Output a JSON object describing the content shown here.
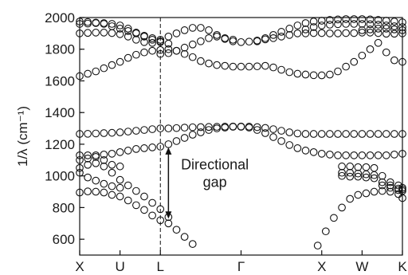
{
  "chart_data": {
    "type": "scatter",
    "title": "",
    "xlabel": "",
    "ylabel": "1/λ (cm⁻¹)",
    "ylim": [
      500,
      2000
    ],
    "y_ticks": [
      600,
      800,
      1000,
      1200,
      1400,
      1600,
      1800,
      2000
    ],
    "x_path": [
      "X",
      "U",
      "L",
      "Γ",
      "X",
      "W",
      "K"
    ],
    "x_path_positions": [
      0,
      1,
      2,
      4,
      6,
      7,
      8
    ],
    "guide_line_at": "L",
    "annotation": {
      "text_line1": "Directional",
      "text_line2": "gap",
      "arrow_x": 2.2,
      "arrow_from": 1180,
      "arrow_to": 730
    },
    "series": [
      {
        "values": [
          [
            0,
            895
          ],
          [
            0.2,
            902
          ],
          [
            0.4,
            900
          ],
          [
            0.6,
            895
          ],
          [
            0.8,
            880
          ],
          [
            1.0,
            870
          ],
          [
            1.2,
            845
          ],
          [
            1.4,
            815
          ],
          [
            1.6,
            785
          ],
          [
            1.8,
            750
          ],
          [
            2.0,
            720
          ],
          [
            2.2,
            700
          ],
          [
            2.4,
            660
          ],
          [
            2.6,
            615
          ],
          [
            2.8,
            570
          ]
        ]
      },
      {
        "values": [
          [
            5.9,
            560
          ],
          [
            6.1,
            650
          ],
          [
            6.3,
            735
          ],
          [
            6.5,
            800
          ],
          [
            6.7,
            855
          ],
          [
            6.9,
            880
          ],
          [
            7.1,
            890
          ],
          [
            7.3,
            900
          ],
          [
            7.5,
            905
          ],
          [
            7.7,
            900
          ],
          [
            7.9,
            885
          ],
          [
            8.0,
            860
          ]
        ]
      },
      {
        "values": [
          [
            0,
            1050
          ],
          [
            0.2,
            1070
          ],
          [
            0.4,
            1080
          ],
          [
            0.6,
            1060
          ],
          [
            0.8,
            1020
          ],
          [
            1.0,
            975
          ],
          [
            1.2,
            940
          ],
          [
            1.4,
            905
          ],
          [
            1.6,
            870
          ],
          [
            1.8,
            830
          ],
          [
            2.0,
            790
          ],
          [
            2.2,
            740
          ]
        ]
      },
      {
        "values": [
          [
            6.5,
            1060
          ],
          [
            6.7,
            1060
          ],
          [
            6.9,
            1055
          ],
          [
            7.1,
            1055
          ],
          [
            7.3,
            1050
          ],
          [
            7.5,
            1000
          ],
          [
            7.7,
            960
          ],
          [
            7.9,
            940
          ],
          [
            8.0,
            925
          ]
        ]
      },
      {
        "values": [
          [
            0,
            1020
          ],
          [
            0.2,
            990
          ],
          [
            0.4,
            970
          ],
          [
            0.6,
            950
          ],
          [
            0.8,
            935
          ],
          [
            1.0,
            925
          ]
        ]
      },
      {
        "values": [
          [
            6.5,
            1020
          ],
          [
            6.7,
            1020
          ],
          [
            6.9,
            1015
          ],
          [
            7.1,
            1010
          ],
          [
            7.3,
            1005
          ],
          [
            7.5,
            960
          ],
          [
            7.7,
            940
          ],
          [
            7.9,
            920
          ],
          [
            8.0,
            915
          ]
        ]
      },
      {
        "values": [
          [
            0,
            1100
          ],
          [
            0.2,
            1110
          ],
          [
            0.4,
            1120
          ],
          [
            0.6,
            1100
          ],
          [
            0.8,
            1070
          ],
          [
            1.0,
            1060
          ]
        ]
      },
      {
        "values": [
          [
            6.5,
            1000
          ],
          [
            6.7,
            995
          ],
          [
            6.9,
            995
          ],
          [
            7.1,
            990
          ],
          [
            7.3,
            985
          ],
          [
            7.5,
            940
          ],
          [
            7.7,
            925
          ],
          [
            7.9,
            910
          ],
          [
            8.0,
            905
          ]
        ]
      },
      {
        "values": [
          [
            0,
            1130
          ],
          [
            0.2,
            1130
          ],
          [
            0.4,
            1130
          ],
          [
            0.6,
            1135
          ],
          [
            0.8,
            1140
          ],
          [
            1.0,
            1150
          ],
          [
            1.2,
            1160
          ],
          [
            1.4,
            1170
          ],
          [
            1.6,
            1175
          ],
          [
            1.8,
            1180
          ],
          [
            2.0,
            1185
          ],
          [
            2.2,
            1200
          ],
          [
            2.4,
            1220
          ],
          [
            2.6,
            1240
          ],
          [
            2.8,
            1260
          ],
          [
            3.0,
            1275
          ],
          [
            3.2,
            1290
          ],
          [
            3.4,
            1300
          ],
          [
            3.6,
            1305
          ],
          [
            3.8,
            1310
          ],
          [
            4.0,
            1310
          ],
          [
            4.2,
            1305
          ],
          [
            4.4,
            1290
          ],
          [
            4.6,
            1270
          ],
          [
            4.8,
            1245
          ],
          [
            5.0,
            1220
          ],
          [
            5.2,
            1195
          ],
          [
            5.4,
            1175
          ],
          [
            5.6,
            1160
          ],
          [
            5.8,
            1150
          ],
          [
            6.0,
            1140
          ],
          [
            6.2,
            1135
          ],
          [
            6.4,
            1130
          ],
          [
            6.6,
            1130
          ],
          [
            6.8,
            1130
          ],
          [
            7.0,
            1130
          ],
          [
            7.2,
            1130
          ],
          [
            7.4,
            1130
          ],
          [
            7.6,
            1130
          ],
          [
            7.8,
            1135
          ],
          [
            8.0,
            1140
          ]
        ]
      },
      {
        "values": [
          [
            0,
            1265
          ],
          [
            0.2,
            1266
          ],
          [
            0.4,
            1268
          ],
          [
            0.6,
            1270
          ],
          [
            0.8,
            1272
          ],
          [
            1.0,
            1275
          ],
          [
            1.2,
            1280
          ],
          [
            1.4,
            1285
          ],
          [
            1.6,
            1290
          ],
          [
            1.8,
            1295
          ],
          [
            2.0,
            1300
          ],
          [
            2.2,
            1300
          ],
          [
            2.4,
            1302
          ],
          [
            2.6,
            1305
          ],
          [
            2.8,
            1307
          ],
          [
            3.0,
            1308
          ],
          [
            3.2,
            1309
          ],
          [
            3.4,
            1310
          ],
          [
            3.6,
            1311
          ],
          [
            3.8,
            1312
          ],
          [
            4.0,
            1312
          ],
          [
            4.2,
            1311
          ],
          [
            4.4,
            1308
          ],
          [
            4.6,
            1303
          ],
          [
            4.8,
            1295
          ],
          [
            5.0,
            1285
          ],
          [
            5.2,
            1275
          ],
          [
            5.4,
            1268
          ],
          [
            5.6,
            1265
          ],
          [
            5.8,
            1265
          ],
          [
            6.0,
            1265
          ],
          [
            6.2,
            1265
          ],
          [
            6.4,
            1265
          ],
          [
            6.6,
            1265
          ],
          [
            6.8,
            1265
          ],
          [
            7.0,
            1265
          ],
          [
            7.2,
            1265
          ],
          [
            7.4,
            1265
          ],
          [
            7.6,
            1265
          ],
          [
            7.8,
            1265
          ],
          [
            8.0,
            1265
          ]
        ]
      },
      {
        "values": [
          [
            0,
            1630
          ],
          [
            0.2,
            1645
          ],
          [
            0.4,
            1660
          ],
          [
            0.6,
            1680
          ],
          [
            0.8,
            1700
          ],
          [
            1.0,
            1720
          ],
          [
            1.2,
            1745
          ],
          [
            1.4,
            1765
          ],
          [
            1.6,
            1780
          ],
          [
            1.8,
            1790
          ],
          [
            2.0,
            1795
          ],
          [
            2.2,
            1800
          ],
          [
            2.4,
            1790
          ],
          [
            2.6,
            1770
          ],
          [
            2.8,
            1750
          ],
          [
            3.0,
            1725
          ],
          [
            3.2,
            1710
          ],
          [
            3.4,
            1700
          ],
          [
            3.6,
            1695
          ],
          [
            3.8,
            1690
          ],
          [
            4.0,
            1690
          ],
          [
            4.2,
            1690
          ],
          [
            4.4,
            1692
          ],
          [
            4.6,
            1695
          ],
          [
            4.8,
            1685
          ],
          [
            5.0,
            1670
          ],
          [
            5.2,
            1655
          ],
          [
            5.4,
            1645
          ],
          [
            5.6,
            1640
          ],
          [
            5.8,
            1636
          ],
          [
            6.0,
            1635
          ],
          [
            6.2,
            1640
          ],
          [
            6.4,
            1660
          ],
          [
            6.6,
            1690
          ],
          [
            6.8,
            1720
          ],
          [
            7.0,
            1760
          ],
          [
            7.2,
            1800
          ],
          [
            7.4,
            1840
          ],
          [
            7.6,
            1780
          ],
          [
            7.8,
            1730
          ],
          [
            8.0,
            1720
          ]
        ]
      },
      {
        "values": [
          [
            2.0,
            1770
          ],
          [
            2.2,
            1775
          ],
          [
            2.4,
            1790
          ],
          [
            2.6,
            1810
          ],
          [
            2.8,
            1830
          ],
          [
            3.0,
            1850
          ],
          [
            3.2,
            1870
          ],
          [
            3.4,
            1880
          ],
          [
            3.6,
            1865
          ],
          [
            3.8,
            1850
          ],
          [
            4.0,
            1845
          ],
          [
            4.2,
            1848
          ],
          [
            4.4,
            1855
          ],
          [
            4.6,
            1862
          ],
          [
            4.8,
            1870
          ],
          [
            5.0,
            1880
          ],
          [
            5.2,
            1890
          ],
          [
            5.4,
            1900
          ],
          [
            5.6,
            1900
          ],
          [
            5.8,
            1902
          ],
          [
            6.0,
            1902
          ],
          [
            6.2,
            1900
          ],
          [
            6.4,
            1900
          ],
          [
            6.6,
            1902
          ],
          [
            6.8,
            1902
          ],
          [
            7.0,
            1905
          ],
          [
            7.2,
            1905
          ],
          [
            7.4,
            1902
          ],
          [
            7.6,
            1898
          ],
          [
            7.8,
            1898
          ],
          [
            8.0,
            1900
          ]
        ]
      },
      {
        "values": [
          [
            0,
            1900
          ],
          [
            0.2,
            1903
          ],
          [
            0.4,
            1905
          ],
          [
            0.6,
            1905
          ],
          [
            0.8,
            1902
          ],
          [
            1.0,
            1895
          ],
          [
            1.2,
            1880
          ],
          [
            1.4,
            1860
          ],
          [
            1.6,
            1845
          ],
          [
            1.8,
            1840
          ],
          [
            2.0,
            1850
          ],
          [
            2.2,
            1880
          ],
          [
            2.4,
            1900
          ],
          [
            2.6,
            1920
          ],
          [
            2.8,
            1935
          ],
          [
            3.0,
            1935
          ],
          [
            3.2,
            1920
          ],
          [
            3.4,
            1890
          ],
          [
            3.6,
            1870
          ],
          [
            3.8,
            1860
          ]
        ]
      },
      {
        "values": [
          [
            0,
            1960
          ],
          [
            0.2,
            1962
          ],
          [
            0.4,
            1965
          ],
          [
            0.6,
            1965
          ],
          [
            0.8,
            1960
          ],
          [
            1.0,
            1950
          ],
          [
            1.2,
            1930
          ],
          [
            1.4,
            1905
          ],
          [
            1.6,
            1880
          ],
          [
            1.8,
            1860
          ],
          [
            2.0,
            1845
          ],
          [
            2.2,
            1835
          ]
        ]
      },
      {
        "values": [
          [
            0,
            1975
          ],
          [
            0.2,
            1972
          ],
          [
            0.4,
            1968
          ],
          [
            0.6,
            1960
          ],
          [
            0.8,
            1945
          ],
          [
            1.0,
            1930
          ],
          [
            1.2,
            1915
          ],
          [
            1.4,
            1900
          ],
          [
            1.6,
            1885
          ],
          [
            1.8,
            1870
          ],
          [
            2.0,
            1860
          ]
        ]
      },
      {
        "values": [
          [
            4.4,
            1850
          ],
          [
            4.6,
            1870
          ],
          [
            4.8,
            1890
          ],
          [
            5.0,
            1910
          ],
          [
            5.2,
            1930
          ],
          [
            5.4,
            1950
          ],
          [
            5.6,
            1965
          ],
          [
            5.8,
            1975
          ],
          [
            6.0,
            1980
          ],
          [
            6.2,
            1985
          ],
          [
            6.4,
            1988
          ],
          [
            6.6,
            1990
          ],
          [
            6.8,
            1990
          ],
          [
            7.0,
            1990
          ],
          [
            7.2,
            1988
          ],
          [
            7.4,
            1985
          ],
          [
            7.6,
            1980
          ],
          [
            7.8,
            1975
          ],
          [
            8.0,
            1970
          ]
        ]
      },
      {
        "values": [
          [
            5.6,
            1925
          ],
          [
            5.8,
            1940
          ],
          [
            6.0,
            1950
          ],
          [
            6.2,
            1955
          ],
          [
            6.4,
            1958
          ],
          [
            6.6,
            1960
          ],
          [
            6.8,
            1960
          ],
          [
            7.0,
            1960
          ],
          [
            7.2,
            1958
          ],
          [
            7.4,
            1955
          ],
          [
            7.6,
            1950
          ],
          [
            7.8,
            1945
          ],
          [
            8.0,
            1940
          ]
        ]
      },
      {
        "values": [
          [
            7.0,
            1920
          ],
          [
            7.2,
            1925
          ],
          [
            7.4,
            1930
          ],
          [
            7.6,
            1930
          ],
          [
            7.8,
            1925
          ],
          [
            8.0,
            1920
          ]
        ]
      }
    ]
  }
}
